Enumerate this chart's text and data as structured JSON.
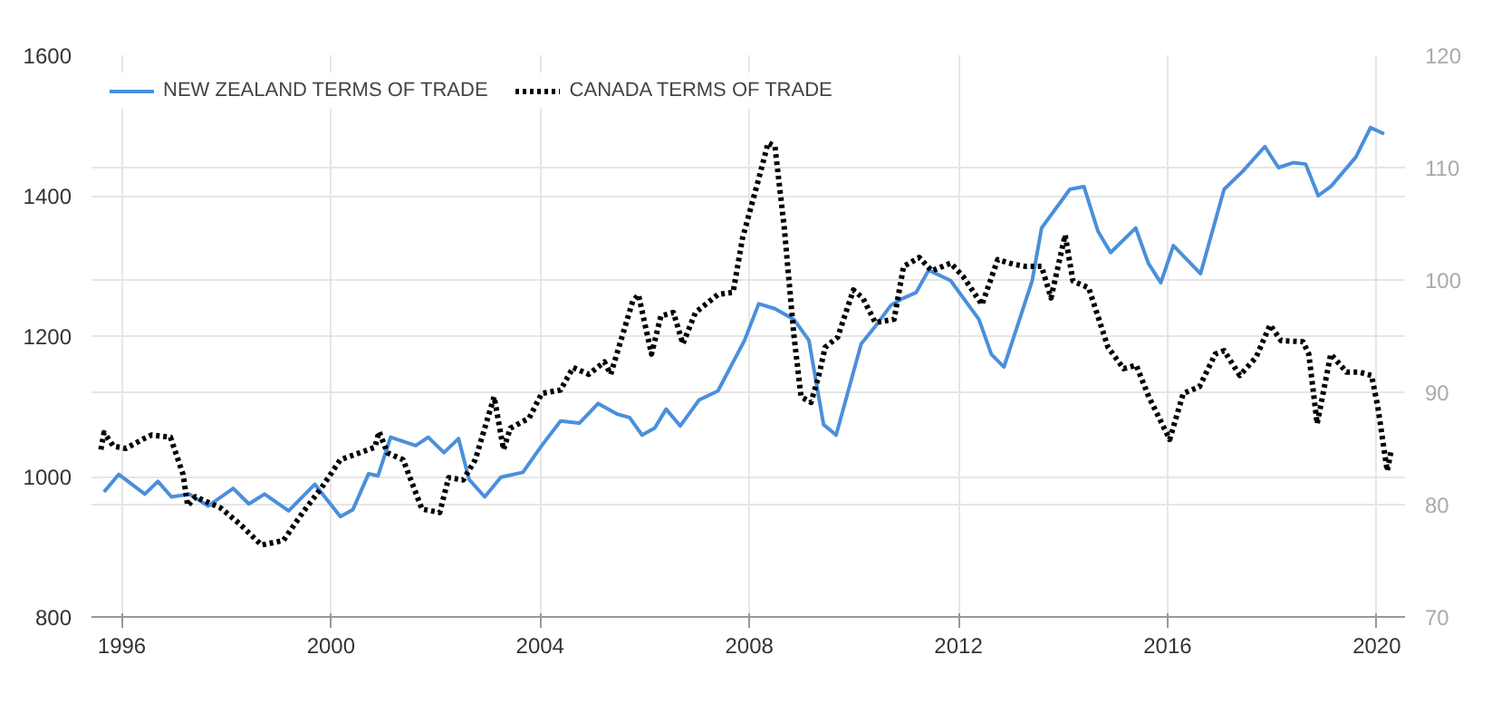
{
  "chart_data": {
    "type": "line",
    "legend": "top left",
    "grid": true,
    "xlim": [
      1995.42,
      2020.54
    ],
    "xticks": [
      1996,
      2000,
      2004,
      2008,
      2012,
      2016,
      2020
    ],
    "ylim": [
      800,
      1600
    ],
    "yticks": [
      800,
      1000,
      1200,
      1400,
      1600
    ],
    "y2lim": [
      70,
      120
    ],
    "y2ticks": [
      70,
      80,
      90,
      100,
      110,
      120
    ],
    "series": [
      {
        "name": "NEW ZEALAND TERMS OF TRADE",
        "color": "#4a8fdb",
        "line_style": "solid",
        "x": [
          1995.66,
          1995.94,
          1996.44,
          1996.69,
          1996.95,
          1997.29,
          1997.65,
          1998.13,
          1998.43,
          1998.73,
          1999.19,
          1999.69,
          2000.18,
          2000.42,
          2000.72,
          2000.9,
          2001.14,
          2001.62,
          2001.86,
          2002.16,
          2002.44,
          2002.64,
          2002.94,
          2003.25,
          2003.67,
          2004.03,
          2004.39,
          2004.75,
          2005.11,
          2005.47,
          2005.71,
          2005.95,
          2006.19,
          2006.41,
          2006.68,
          2007.04,
          2007.4,
          2007.91,
          2008.18,
          2008.49,
          2008.85,
          2009.14,
          2009.42,
          2009.66,
          2010.14,
          2010.41,
          2010.71,
          2010.89,
          2011.19,
          2011.43,
          2011.85,
          2012.39,
          2012.63,
          2012.87,
          2013.41,
          2013.59,
          2014.13,
          2014.4,
          2014.67,
          2014.91,
          2015.39,
          2015.63,
          2015.87,
          2016.11,
          2016.63,
          2017.08,
          2017.44,
          2017.86,
          2018.12,
          2018.4,
          2018.64,
          2018.88,
          2019.12,
          2019.6,
          2019.88,
          2020.14
        ],
        "values": [
          978,
          1003,
          975,
          993,
          971,
          975,
          958,
          983,
          961,
          975,
          951,
          989,
          943,
          953,
          1004,
          1001,
          1056,
          1044,
          1056,
          1034,
          1054,
          996,
          971,
          999,
          1006,
          1044,
          1079,
          1076,
          1104,
          1089,
          1084,
          1059,
          1069,
          1096,
          1072,
          1109,
          1122,
          1194,
          1246,
          1239,
          1224,
          1194,
          1074,
          1059,
          1189,
          1214,
          1244,
          1252,
          1262,
          1294,
          1279,
          1224,
          1174,
          1156,
          1279,
          1354,
          1409,
          1413,
          1349,
          1319,
          1354,
          1304,
          1276,
          1329,
          1289,
          1409,
          1435,
          1470,
          1440,
          1447,
          1445,
          1400,
          1413,
          1455,
          1497,
          1488
        ]
      },
      {
        "name": "CANADA TERMS OF TRADE",
        "color": "#000000",
        "line_style": "dotted",
        "axis": "y2",
        "x": [
          1995.6,
          1995.66,
          1995.84,
          1996.08,
          1996.39,
          1996.57,
          1996.93,
          1997.17,
          1997.26,
          1997.41,
          1997.65,
          1997.89,
          1998.25,
          1998.67,
          1999.09,
          1999.46,
          1999.82,
          2000.18,
          2000.54,
          2000.84,
          2000.92,
          2001.08,
          2001.38,
          2001.74,
          2002.08,
          2002.25,
          2002.53,
          2002.76,
          2003.12,
          2003.3,
          2003.43,
          2003.79,
          2004.03,
          2004.39,
          2004.63,
          2004.93,
          2005.23,
          2005.35,
          2005.77,
          2005.88,
          2006.13,
          2006.31,
          2006.55,
          2006.73,
          2006.97,
          2007.4,
          2007.69,
          2007.87,
          2008.18,
          2008.36,
          2008.49,
          2008.67,
          2008.85,
          2008.99,
          2009.18,
          2009.33,
          2009.45,
          2009.69,
          2009.99,
          2010.17,
          2010.41,
          2010.77,
          2010.95,
          2011.25,
          2011.49,
          2011.85,
          2012.09,
          2012.45,
          2012.75,
          2013.05,
          2013.29,
          2013.59,
          2013.77,
          2014.04,
          2014.19,
          2014.49,
          2014.86,
          2015.16,
          2015.4,
          2015.64,
          2016.04,
          2016.3,
          2016.61,
          2016.91,
          2017.08,
          2017.38,
          2017.69,
          2017.96,
          2018.17,
          2018.59,
          2018.7,
          2018.86,
          2019.12,
          2019.42,
          2019.66,
          2019.9,
          2020.02,
          2020.2,
          2020.28
        ],
        "values": [
          84.9,
          86.4,
          85.2,
          85.0,
          85.8,
          86.2,
          86.0,
          82.7,
          79.9,
          80.7,
          80.2,
          79.7,
          78.3,
          76.4,
          76.8,
          79.3,
          81.5,
          84.0,
          84.6,
          85.1,
          86.5,
          84.6,
          84.0,
          79.6,
          79.3,
          82.4,
          82.2,
          84.0,
          89.6,
          84.9,
          86.8,
          87.7,
          89.9,
          90.2,
          92.2,
          91.6,
          92.7,
          91.6,
          98.1,
          98.7,
          93.4,
          96.8,
          97.1,
          94.3,
          97.1,
          98.7,
          98.9,
          103.7,
          109.0,
          112.2,
          111.9,
          104.6,
          95.2,
          89.6,
          89.1,
          91.5,
          94.0,
          94.9,
          99.1,
          98.4,
          96.2,
          96.5,
          101.2,
          102.0,
          100.8,
          101.5,
          100.3,
          97.8,
          101.8,
          101.4,
          101.2,
          101.2,
          98.4,
          104.0,
          99.9,
          99.3,
          94.0,
          92.1,
          92.4,
          89.6,
          85.8,
          89.9,
          90.5,
          93.4,
          93.7,
          91.5,
          93.1,
          96.0,
          94.6,
          94.5,
          93.4,
          87.2,
          93.4,
          91.8,
          91.8,
          91.5,
          88.7,
          83.0,
          84.9
        ]
      }
    ]
  }
}
